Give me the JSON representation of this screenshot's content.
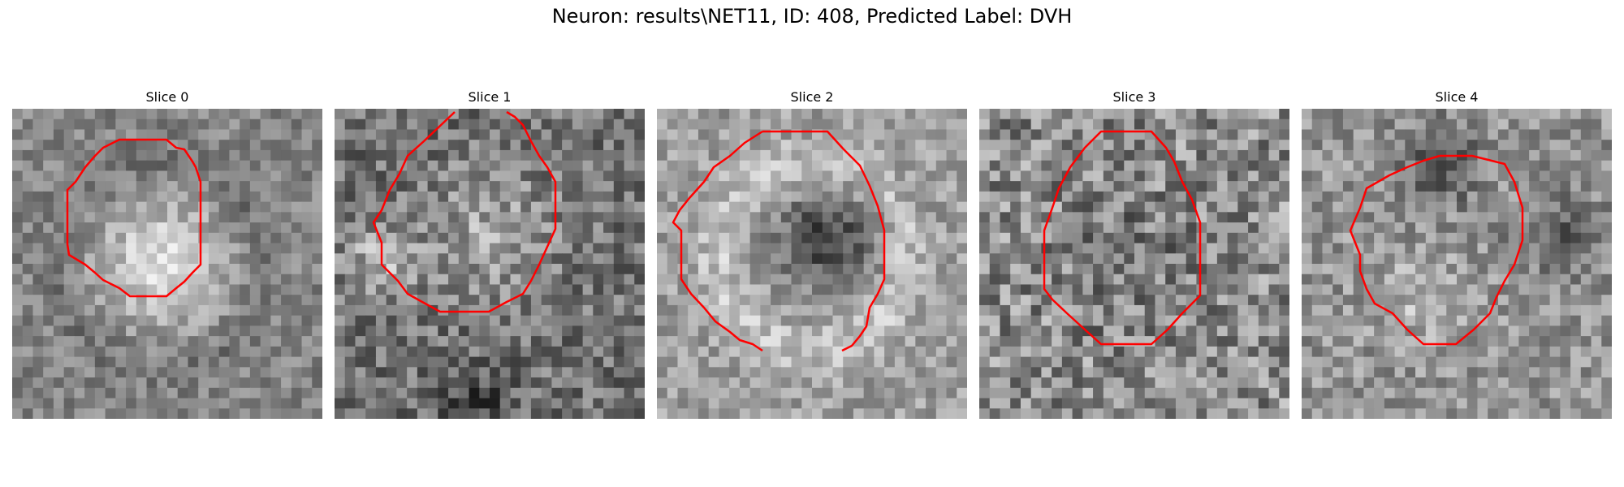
{
  "figure": {
    "title": "Neuron: results\\NET11, ID: 408, Predicted Label: DVH",
    "contour_color": "#ff0000"
  },
  "panels": [
    {
      "label": "Slice 0",
      "shading": "bright-center",
      "icon": "grayscale-microscopy-slice"
    },
    {
      "label": "Slice 1",
      "shading": "dark-ring",
      "icon": "grayscale-microscopy-slice"
    },
    {
      "label": "Slice 2",
      "shading": "dark-center-bright-ring",
      "icon": "grayscale-microscopy-slice"
    },
    {
      "label": "Slice 3",
      "shading": "noisy",
      "icon": "grayscale-microscopy-slice"
    },
    {
      "label": "Slice 4",
      "shading": "dark-ring-bright-lower",
      "icon": "grayscale-microscopy-slice"
    }
  ]
}
